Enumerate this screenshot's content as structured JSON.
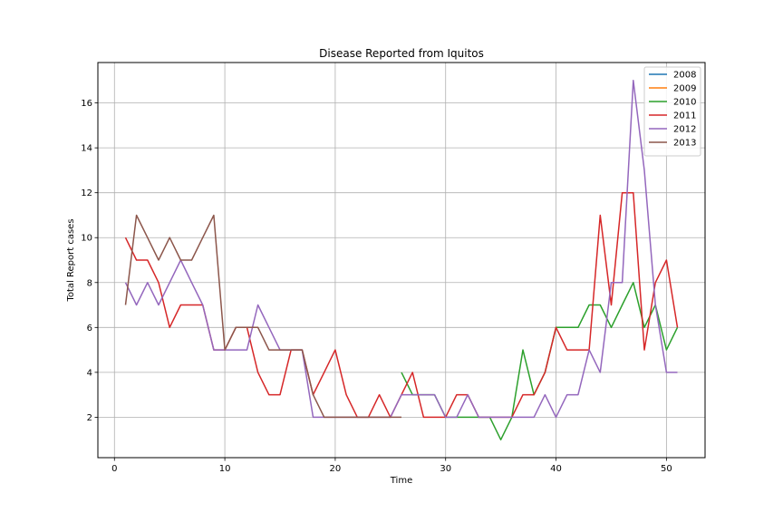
{
  "chart_data": {
    "type": "line",
    "title": "Disease Reported from Iquitos",
    "xlabel": "Time",
    "ylabel": "Total Report cases",
    "xlim": [
      -1.5,
      53.5
    ],
    "ylim": [
      0.2,
      17.8
    ],
    "xticks": [
      0,
      10,
      20,
      30,
      40,
      50
    ],
    "yticks": [
      2,
      4,
      6,
      8,
      10,
      12,
      14,
      16
    ],
    "grid": true,
    "legend_position": "top-right",
    "series": [
      {
        "name": "2008",
        "color": "#1f77b4",
        "x": [],
        "y": []
      },
      {
        "name": "2009",
        "color": "#ff7f0e",
        "x": [],
        "y": []
      },
      {
        "name": "2010",
        "color": "#2ca02c",
        "x": [
          26,
          27,
          28,
          29,
          30,
          31,
          32,
          33,
          34,
          35,
          36,
          37,
          38,
          39,
          40,
          41,
          42,
          43,
          44,
          45,
          46,
          47,
          48,
          49,
          50,
          51
        ],
        "y": [
          4,
          3,
          3,
          3,
          2,
          2,
          2,
          2,
          2,
          1,
          2,
          5,
          3,
          4,
          6,
          6,
          6,
          7,
          7,
          6,
          7,
          8,
          6,
          7,
          5,
          6
        ]
      },
      {
        "name": "2011",
        "color": "#d62728",
        "x": [
          1,
          2,
          3,
          4,
          5,
          6,
          7,
          8,
          9,
          10,
          11,
          12,
          13,
          14,
          15,
          16,
          17,
          18,
          19,
          20,
          21,
          22,
          23,
          24,
          25,
          26,
          27,
          28,
          29,
          30,
          31,
          32,
          33,
          34,
          35,
          36,
          37,
          38,
          39,
          40,
          41,
          42,
          43,
          44,
          45,
          46,
          47,
          48,
          49,
          50,
          51
        ],
        "y": [
          10,
          9,
          9,
          8,
          6,
          7,
          7,
          7,
          5,
          5,
          6,
          6,
          4,
          3,
          3,
          5,
          5,
          3,
          4,
          5,
          3,
          2,
          2,
          3,
          2,
          3,
          4,
          2,
          2,
          2,
          3,
          3,
          2,
          2,
          2,
          2,
          3,
          3,
          4,
          6,
          5,
          5,
          5,
          11,
          7,
          12,
          12,
          5,
          8,
          9,
          6
        ]
      },
      {
        "name": "2012",
        "color": "#9467bd",
        "x": [
          1,
          2,
          3,
          4,
          5,
          6,
          7,
          8,
          9,
          10,
          11,
          12,
          13,
          14,
          15,
          16,
          17,
          18,
          19,
          20,
          21,
          22,
          23,
          24,
          25,
          26,
          27,
          28,
          29,
          30,
          31,
          32,
          33,
          34,
          35,
          36,
          37,
          38,
          39,
          40,
          41,
          42,
          43,
          44,
          45,
          46,
          47,
          48,
          49,
          50,
          51
        ],
        "y": [
          8,
          7,
          8,
          7,
          8,
          9,
          8,
          7,
          5,
          5,
          5,
          5,
          7,
          6,
          5,
          5,
          5,
          2,
          2,
          2,
          2,
          2,
          2,
          2,
          2,
          3,
          3,
          3,
          3,
          2,
          2,
          3,
          2,
          2,
          2,
          2,
          2,
          2,
          3,
          2,
          3,
          3,
          5,
          4,
          8,
          8,
          17,
          13,
          7,
          4,
          4
        ]
      },
      {
        "name": "2013",
        "color": "#8c564b",
        "x": [
          1,
          2,
          3,
          4,
          5,
          6,
          7,
          8,
          9,
          10,
          11,
          12,
          13,
          14,
          15,
          16,
          17,
          18,
          19,
          20,
          21,
          22,
          23,
          24,
          25,
          26
        ],
        "y": [
          7,
          11,
          10,
          9,
          10,
          9,
          9,
          10,
          11,
          5,
          6,
          6,
          6,
          5,
          5,
          5,
          5,
          3,
          2,
          2,
          2,
          2,
          2,
          2,
          2,
          2
        ]
      }
    ]
  }
}
